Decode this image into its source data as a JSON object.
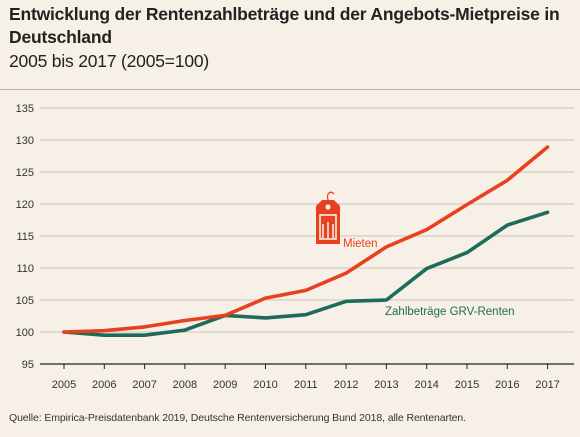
{
  "chart_data": {
    "type": "line",
    "title": "Entwicklung der Rentenzahlbeträge und der Angebots-Mietpreise in Deutschland",
    "subtitle": "2005 bis 2017 (2005=100)",
    "xlabel": "",
    "ylabel": "",
    "x": [
      "2005",
      "2006",
      "2007",
      "2008",
      "2009",
      "2010",
      "2011",
      "2012",
      "2013",
      "2014",
      "2015",
      "2016",
      "2017"
    ],
    "ylim": [
      95,
      135
    ],
    "yticks": [
      95,
      100,
      105,
      110,
      115,
      120,
      125,
      130,
      135
    ],
    "grid": true,
    "series": [
      {
        "name": "Mieten",
        "color": "#e8411f",
        "icon": "price-tag-house-icon",
        "values": [
          100.0,
          100.2,
          100.8,
          101.8,
          102.6,
          105.3,
          106.5,
          109.2,
          113.3,
          116.0,
          119.9,
          123.7,
          128.9
        ]
      },
      {
        "name": "Zahlbeträge GRV-Renten",
        "color": "#1f6b5a",
        "values": [
          100.0,
          99.5,
          99.5,
          100.3,
          102.6,
          102.2,
          102.7,
          104.8,
          105.0,
          109.9,
          112.4,
          116.7,
          118.7
        ]
      }
    ]
  },
  "source": "Quelle: Empirica-Preisdatenbank 2019, Deutsche Rentenversicherung Bund 2018, alle Rentenarten."
}
